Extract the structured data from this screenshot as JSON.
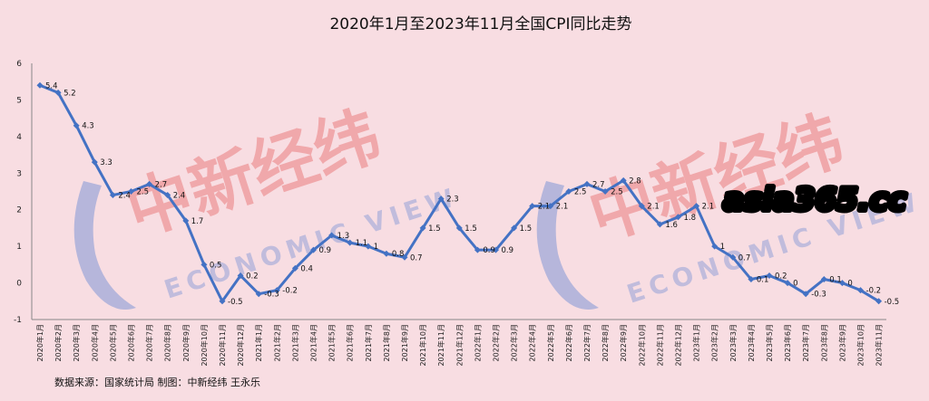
{
  "chart_data": {
    "type": "line",
    "title": "2020年1月至2023年11月全国CPI同比走势",
    "ylim": [
      -1,
      6
    ],
    "yticks": [
      -1,
      0,
      1,
      2,
      3,
      4,
      5,
      6
    ],
    "grid": false,
    "categories": [
      "2020年1月",
      "2020年2月",
      "2020年3月",
      "2020年4月",
      "2020年5月",
      "2020年6月",
      "2020年7月",
      "2020年8月",
      "2020年9月",
      "2020年10月",
      "2020年11月",
      "2020年12月",
      "2021年1月",
      "2021年2月",
      "2021年3月",
      "2021年4月",
      "2021年5月",
      "2021年6月",
      "2021年7月",
      "2021年8月",
      "2021年9月",
      "2021年10月",
      "2021年11月",
      "2021年12月",
      "2022年1月",
      "2022年2月",
      "2022年3月",
      "2022年4月",
      "2022年5月",
      "2022年6月",
      "2022年7月",
      "2022年8月",
      "2022年9月",
      "2022年10月",
      "2022年11月",
      "2022年12月",
      "2023年1月",
      "2023年2月",
      "2023年3月",
      "2023年4月",
      "2023年5月",
      "2023年6月",
      "2023年7月",
      "2023年8月",
      "2023年9月",
      "2023年10月",
      "2023年11月"
    ],
    "values": [
      5.4,
      5.2,
      4.3,
      3.3,
      2.4,
      2.5,
      2.7,
      2.4,
      1.7,
      0.5,
      -0.5,
      0.2,
      -0.3,
      -0.2,
      0.4,
      0.9,
      1.3,
      1.1,
      1,
      0.8,
      0.7,
      1.5,
      2.3,
      1.5,
      0.9,
      0.9,
      1.5,
      2.1,
      2.1,
      2.5,
      2.7,
      2.5,
      2.8,
      2.1,
      1.6,
      1.8,
      2.1,
      1,
      0.7,
      0.1,
      0.2,
      0,
      -0.3,
      0.1,
      0,
      -0.2,
      -0.5
    ],
    "line_color": "#4472c4"
  },
  "footer": {
    "source": "数据来源：国家统计局    制图：中新经纬 王永乐"
  },
  "watermark": {
    "cn_text": "中新经纬",
    "en_text": "ECONOMIC VIEW",
    "site": "asia365.cc"
  }
}
